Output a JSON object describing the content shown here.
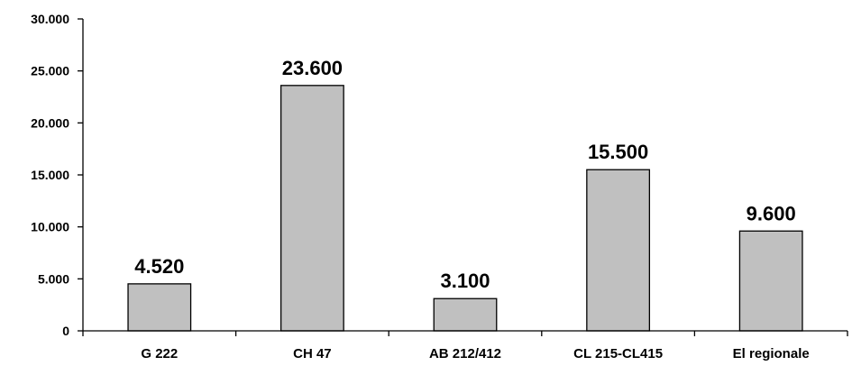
{
  "chart_data": {
    "type": "bar",
    "title": "",
    "xlabel": "",
    "ylabel": "",
    "categories": [
      "G 222",
      "CH 47",
      "AB 212/412",
      "CL 215-CL415",
      "El regionale"
    ],
    "values": [
      4520,
      23600,
      3100,
      15500,
      9600
    ],
    "value_labels": [
      "4.520",
      "23.600",
      "3.100",
      "15.500",
      "9.600"
    ],
    "ylim": [
      0,
      30000
    ],
    "y_ticks": [
      0,
      5000,
      10000,
      15000,
      20000,
      25000,
      30000
    ],
    "y_tick_labels": [
      "0",
      "5.000",
      "10.000",
      "15.000",
      "20.000",
      "25.000",
      "30.000"
    ],
    "grid": false,
    "legend": "none",
    "bar_color": "#c0c0c0"
  }
}
